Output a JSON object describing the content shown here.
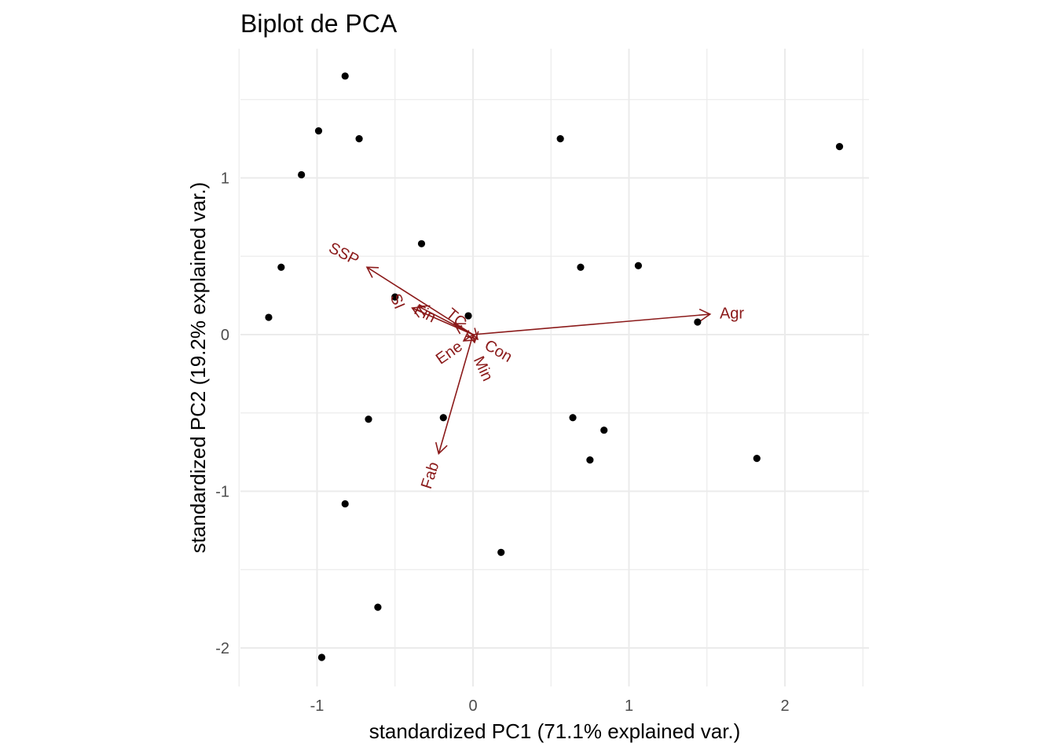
{
  "chart_data": {
    "type": "scatter",
    "title": "Biplot de PCA",
    "xlabel": "standardized PC1 (71.1% explained var.)",
    "ylabel": "standardized PC2 (19.2% explained var.)",
    "xlim": [
      -1.5,
      2.5
    ],
    "ylim": [
      -2.2,
      1.8
    ],
    "x_ticks": [
      -1,
      0,
      1,
      2
    ],
    "x_tick_labels": [
      "-1",
      "0",
      "1",
      "2"
    ],
    "y_ticks": [
      -2,
      -1,
      0,
      1
    ],
    "y_tick_labels": [
      "-2",
      "-1",
      "0",
      "1"
    ],
    "grid": true,
    "arrow_color": "#8b1a1a",
    "point_color": "#000000",
    "points": [
      {
        "x": -0.82,
        "y": 1.65
      },
      {
        "x": -0.99,
        "y": 1.3
      },
      {
        "x": -0.73,
        "y": 1.25
      },
      {
        "x": -1.1,
        "y": 1.02
      },
      {
        "x": -1.23,
        "y": 0.43
      },
      {
        "x": -1.31,
        "y": 0.11
      },
      {
        "x": -0.33,
        "y": 0.58
      },
      {
        "x": -0.5,
        "y": 0.24
      },
      {
        "x": -0.03,
        "y": 0.12
      },
      {
        "x": 0.56,
        "y": 1.25
      },
      {
        "x": 0.69,
        "y": 0.43
      },
      {
        "x": 1.06,
        "y": 0.44
      },
      {
        "x": 1.44,
        "y": 0.08
      },
      {
        "x": 2.35,
        "y": 1.2
      },
      {
        "x": -0.67,
        "y": -0.54
      },
      {
        "x": -0.19,
        "y": -0.53
      },
      {
        "x": 0.64,
        "y": -0.53
      },
      {
        "x": 0.84,
        "y": -0.61
      },
      {
        "x": 0.75,
        "y": -0.8
      },
      {
        "x": 1.82,
        "y": -0.79
      },
      {
        "x": -0.82,
        "y": -1.08
      },
      {
        "x": 0.18,
        "y": -1.39
      },
      {
        "x": -0.61,
        "y": -1.74
      },
      {
        "x": -0.97,
        "y": -2.06
      }
    ],
    "loadings": [
      {
        "label": "Agr",
        "x": 1.52,
        "y": 0.13,
        "lx": 1.66,
        "ly": 0.13,
        "angle": 0
      },
      {
        "label": "SSP",
        "x": -0.68,
        "y": 0.43,
        "lx": -0.83,
        "ly": 0.51,
        "angle": 27
      },
      {
        "label": "Fab",
        "x": -0.22,
        "y": -0.76,
        "lx": -0.27,
        "ly": -0.9,
        "angle": -72
      },
      {
        "label": "SI",
        "x": -0.39,
        "y": 0.17,
        "lx": -0.49,
        "ly": 0.21,
        "angle": 67
      },
      {
        "label": "Fin",
        "x": -0.35,
        "y": 0.18,
        "lx": -0.31,
        "ly": 0.13,
        "angle": 27
      },
      {
        "label": "TC",
        "x": -0.12,
        "y": 0.07,
        "lx": -0.11,
        "ly": 0.1,
        "angle": 40
      },
      {
        "label": "Ene",
        "x": -0.06,
        "y": -0.04,
        "lx": -0.15,
        "ly": -0.12,
        "angle": -35
      },
      {
        "label": "Con",
        "x": 0.03,
        "y": -0.03,
        "lx": 0.16,
        "ly": -0.11,
        "angle": 30
      },
      {
        "label": "Min",
        "x": 0.01,
        "y": -0.05,
        "lx": 0.06,
        "ly": -0.22,
        "angle": 65
      }
    ]
  }
}
